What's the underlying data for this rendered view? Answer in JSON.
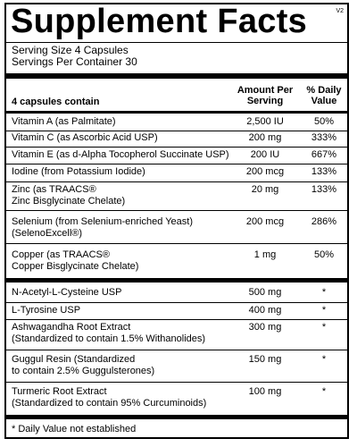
{
  "label": {
    "title": "Supplement Facts",
    "version": "V2",
    "serving_size": "Serving Size 4 Capsules",
    "servings_per_container": "Servings Per Container 30",
    "column_headers": {
      "contains": "4 capsules contain",
      "amount_line1": "Amount Per",
      "amount_line2": "Serving",
      "dv_line1": "% Daily",
      "dv_line2": "Value"
    },
    "rows": [
      {
        "name1": "Vitamin A (as Palmitate)",
        "name2": "",
        "amount": "2,500 IU",
        "dv": "50%"
      },
      {
        "name1": "Vitamin C (as Ascorbic Acid USP)",
        "name2": "",
        "amount": "200 mg",
        "dv": "333%"
      },
      {
        "name1": "Vitamin E (as d-Alpha Tocopherol Succinate USP)",
        "name2": "",
        "amount": "200 IU",
        "dv": "667%"
      },
      {
        "name1": "Iodine (from Potassium Iodide)",
        "name2": "",
        "amount": "200 mcg",
        "dv": "133%"
      },
      {
        "name1": "Zinc (as TRAACS®",
        "name2": "Zinc Bisglycinate Chelate)",
        "amount": "20 mg",
        "dv": "133%"
      },
      {
        "name1": "Selenium (from Selenium-enriched Yeast)",
        "name2": "(SelenoExcell®)",
        "amount": "200 mcg",
        "dv": "286%"
      },
      {
        "name1": "Copper (as TRAACS®",
        "name2": "Copper Bisglycinate Chelate)",
        "amount": "1 mg",
        "dv": "50%"
      },
      {
        "name1": "N-Acetyl-L-Cysteine USP",
        "name2": "",
        "amount": "500 mg",
        "dv": "*"
      },
      {
        "name1": "L-Tyrosine USP",
        "name2": "",
        "amount": "400 mg",
        "dv": "*"
      },
      {
        "name1": "Ashwagandha Root Extract",
        "name2": "(Standardized to contain 1.5% Withanolides)",
        "amount": "300 mg",
        "dv": "*"
      },
      {
        "name1": "Guggul Resin (Standardized",
        "name2": "to contain 2.5% Guggulsterones)",
        "amount": "150 mg",
        "dv": "*"
      },
      {
        "name1": "Turmeric Root Extract",
        "name2": "(Standardized to contain 95% Curcuminoids)",
        "amount": "100 mg",
        "dv": "*"
      }
    ],
    "footnote": "* Daily Value not established"
  }
}
